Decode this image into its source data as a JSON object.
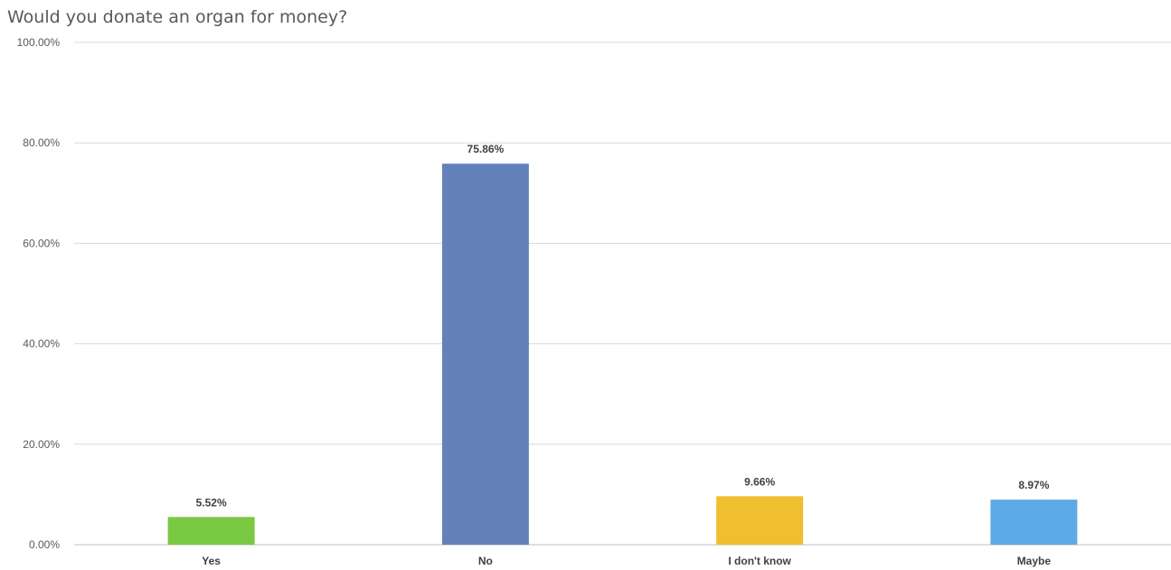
{
  "chart_data": {
    "type": "bar",
    "title": "Would you donate an organ for money?",
    "xlabel": "",
    "ylabel": "",
    "categories": [
      "Yes",
      "No",
      "I don't know",
      "Maybe"
    ],
    "values": [
      5.52,
      75.86,
      9.66,
      8.97
    ],
    "value_labels": [
      "5.52%",
      "75.86%",
      "9.66%",
      "8.97%"
    ],
    "colors": [
      "#7ac943",
      "#6282b9",
      "#f0bf2f",
      "#5daae8"
    ],
    "ylim": [
      0,
      100
    ],
    "yticks": [
      0,
      20,
      40,
      60,
      80,
      100
    ],
    "ytick_labels": [
      "0.00%",
      "20.00%",
      "40.00%",
      "60.00%",
      "80.00%",
      "100.00%"
    ],
    "grid": true,
    "legend": "none"
  }
}
